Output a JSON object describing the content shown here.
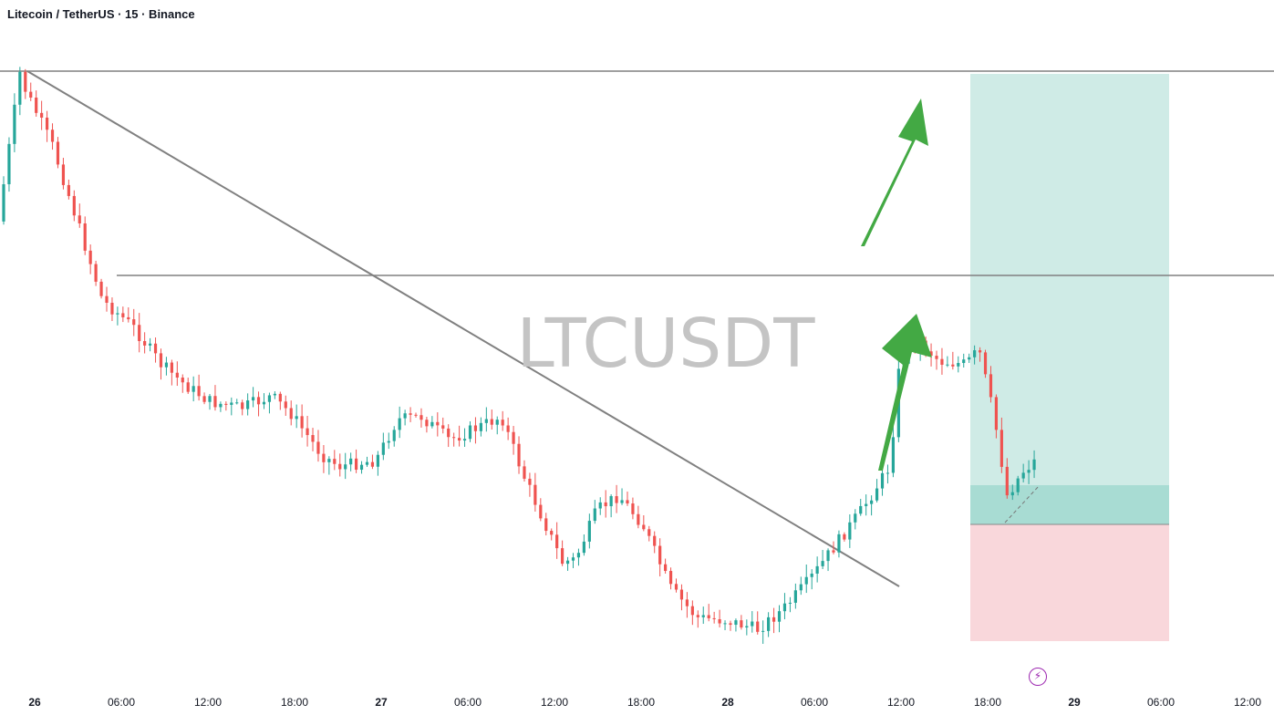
{
  "header": {
    "title": "Litecoin / TetherUS · 15 · Binance"
  },
  "watermark": "LTCUSDT",
  "icons": {
    "lightning": "lightning-icon"
  },
  "colors": {
    "up": "#26a69a",
    "down": "#ef5350",
    "line": "#808080",
    "arrow": "#43a944",
    "profit_zone": "#cfebe6",
    "profit_zone_dark": "#a8dcd3",
    "loss_zone": "#f9d7db"
  },
  "chart_data": {
    "type": "candlestick",
    "title": "Litecoin / TetherUS · 15 · Binance",
    "x_ticks": [
      {
        "label": "26",
        "day": true
      },
      {
        "label": "06:00"
      },
      {
        "label": "12:00"
      },
      {
        "label": "18:00"
      },
      {
        "label": "27",
        "day": true
      },
      {
        "label": "06:00"
      },
      {
        "label": "12:00"
      },
      {
        "label": "18:00"
      },
      {
        "label": "28",
        "day": true
      },
      {
        "label": "06:00"
      },
      {
        "label": "12:00"
      },
      {
        "label": "18:00"
      },
      {
        "label": "29",
        "day": true
      },
      {
        "label": "06:00"
      },
      {
        "label": "12:00"
      }
    ],
    "price_scale": "hidden",
    "drawings": [
      "downtrend line",
      "horizontal resistance",
      "horizontal top",
      "long position (profit/loss zones)",
      "two green up arrows"
    ],
    "trend_path": [
      [
        0,
        0.56
      ],
      [
        1.0,
        0.05
      ],
      [
        1.2,
        0.1
      ],
      [
        2.5,
        0.3
      ],
      [
        3.6,
        0.55
      ],
      [
        4.8,
        0.83
      ],
      [
        6.2,
        0.92
      ],
      [
        7.5,
        1.05
      ],
      [
        8.6,
        1.12
      ],
      [
        9.8,
        1.18
      ],
      [
        11.2,
        1.2
      ],
      [
        12.6,
        1.16
      ],
      [
        13.5,
        1.22
      ],
      [
        14.9,
        1.36
      ],
      [
        15.7,
        1.4
      ],
      [
        17.4,
        1.38
      ],
      [
        18.4,
        1.24
      ],
      [
        19.5,
        1.23
      ],
      [
        20.8,
        1.31
      ],
      [
        22.0,
        1.27
      ],
      [
        23.2,
        1.23
      ],
      [
        24.2,
        1.43
      ],
      [
        26.0,
        1.73
      ],
      [
        26.6,
        1.72
      ],
      [
        27.6,
        1.55
      ],
      [
        28.6,
        1.5
      ],
      [
        29.7,
        1.6
      ],
      [
        31.0,
        1.82
      ],
      [
        32.2,
        1.92
      ],
      [
        33.6,
        1.93
      ],
      [
        35.0,
        1.96
      ],
      [
        36.2,
        1.89
      ],
      [
        37.4,
        1.79
      ],
      [
        38.4,
        1.69
      ],
      [
        39.8,
        1.55
      ],
      [
        41.1,
        1.4
      ],
      [
        41.6,
        1.0
      ],
      [
        42.4,
        0.97
      ],
      [
        43.4,
        1.04
      ],
      [
        44.6,
        1.05
      ],
      [
        45.2,
        1.0
      ],
      [
        45.9,
        1.23
      ],
      [
        46.5,
        1.5
      ],
      [
        47.2,
        1.42
      ],
      [
        47.8,
        1.38
      ]
    ]
  }
}
